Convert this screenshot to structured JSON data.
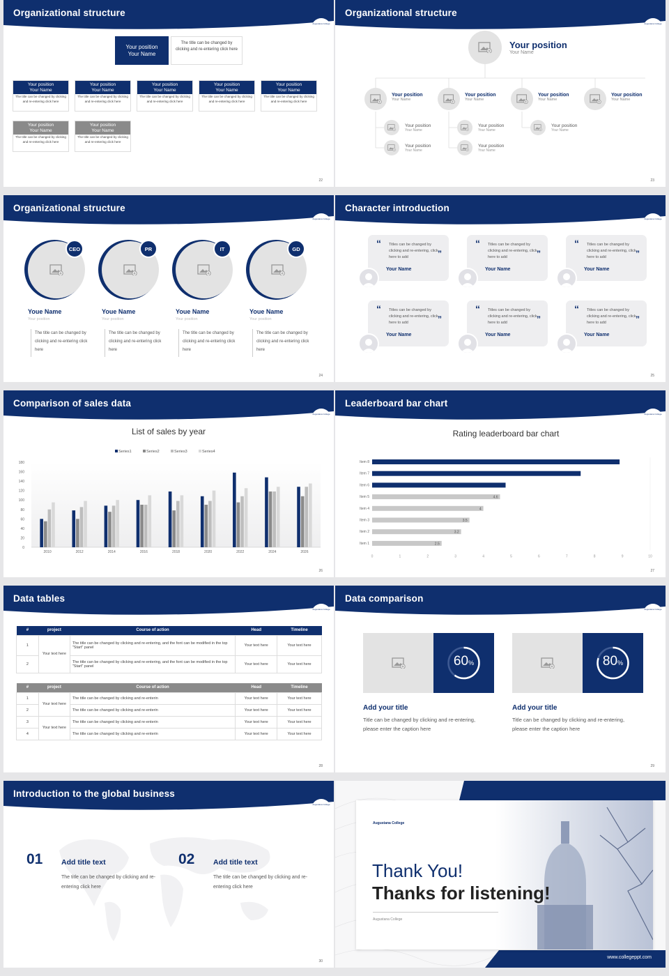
{
  "slides": {
    "s22": {
      "title": "Organizational structure",
      "page": "22",
      "top_box": {
        "position": "Your position",
        "name": "Your Name",
        "desc": "The title can be changed by clicking and re-entering click here"
      },
      "row1": [
        {
          "position": "Your position",
          "name": "Your Name",
          "desc": "The title can be changed by clicking and re-entering click here"
        },
        {
          "position": "Your position",
          "name": "Your Name",
          "desc": "The title can be changed by clicking and re-entering click here"
        },
        {
          "position": "Your position",
          "name": "Your Name",
          "desc": "The title can be changed by clicking and re-entering click here"
        },
        {
          "position": "Your position",
          "name": "Your Name",
          "desc": "The title can be changed by clicking and re-entering click here"
        },
        {
          "position": "Your position",
          "name": "Your Name",
          "desc": "The title can be changed by clicking and re-entering click here"
        }
      ],
      "row2": [
        {
          "position": "Your position",
          "name": "Your Name",
          "desc": "The title can be changed by clicking and re-entering click here"
        },
        {
          "position": "Your position",
          "name": "Your Name",
          "desc": "The title can be changed by clicking and re-entering click here"
        }
      ]
    },
    "s23": {
      "title": "Organizational structure",
      "page": "23",
      "top": {
        "position": "Your position",
        "name": "Your Name"
      },
      "level1": [
        {
          "position": "Your position",
          "name": "Your Name"
        },
        {
          "position": "Your position",
          "name": "Your Name"
        },
        {
          "position": "Your position",
          "name": "Your Name"
        },
        {
          "position": "Your position",
          "name": "Your Name"
        }
      ],
      "level2": [
        {
          "position": "Your position",
          "name": "Your Name"
        },
        {
          "position": "Your position",
          "name": "Your Name"
        },
        {
          "position": "Your position",
          "name": "Your Name"
        },
        {
          "position": "Your position",
          "name": "Your Name"
        },
        {
          "position": "Your position",
          "name": "Your Name"
        }
      ]
    },
    "s24": {
      "title": "Organizational structure",
      "page": "24",
      "people": [
        {
          "badge": "CEO",
          "name": "Youe Name",
          "position": "Your position",
          "desc": "The title can be changed by clicking and re-entering click here"
        },
        {
          "badge": "PR",
          "name": "Youe Name",
          "position": "Your position",
          "desc": "The title can be changed by clicking and re-entering click here"
        },
        {
          "badge": "IT",
          "name": "Youe Name",
          "position": "Your position",
          "desc": "The title can be changed by clicking and re-entering click here"
        },
        {
          "badge": "GD",
          "name": "Youe Name",
          "position": "Your position",
          "desc": "The title can be changed by clicking and re-entering click here"
        }
      ]
    },
    "s25": {
      "title": "Character introduction",
      "page": "25",
      "cards": [
        {
          "quote": "Titles can be changed by clicking and re-entering, click here to add",
          "name": "Your Name"
        },
        {
          "quote": "Titles can be changed by clicking and re-entering, click here to add",
          "name": "Your Name"
        },
        {
          "quote": "Titles can be changed by clicking and re-entering, click here to add",
          "name": "Your Name"
        },
        {
          "quote": "Titles can be changed by clicking and re-entering, click here to add",
          "name": "Your Name"
        },
        {
          "quote": "Titles can be changed by clicking and re-entering, click here to add",
          "name": "Your Name"
        },
        {
          "quote": "Titles can be changed by clicking and re-entering, click here to add",
          "name": "Your Name"
        }
      ]
    },
    "s26": {
      "title": "Comparison of sales data",
      "page": "26"
    },
    "s27": {
      "title": "Leaderboard bar chart",
      "page": "27"
    },
    "s28": {
      "title": "Data tables",
      "page": "28",
      "table1": {
        "headers": [
          "#",
          "project",
          "Course of action",
          "Head",
          "Timeline"
        ],
        "project": "Your text here",
        "rows": [
          {
            "num": "1",
            "action": "The title can be changed by clicking and re-entering, and the font can be modified in the top \"Start\" panel",
            "head": "Your text here",
            "timeline": "Your text here"
          },
          {
            "num": "2",
            "action": "The title can be changed by clicking and re-entering, and the font can be modified in the top \"Start\" panel",
            "head": "Your text here",
            "timeline": "Your text here"
          }
        ]
      },
      "table2": {
        "headers": [
          "#",
          "project",
          "Course of action",
          "Head",
          "Timeline"
        ],
        "project_a": "Your text here",
        "project_b": "Your text here",
        "rows": [
          {
            "num": "1",
            "action": "The title can be changed by clicking and re-enterin",
            "head": "Your text here",
            "timeline": "Your text here"
          },
          {
            "num": "2",
            "action": "The title can be changed by clicking and re-enterin",
            "head": "Your text here",
            "timeline": "Your text here"
          },
          {
            "num": "3",
            "action": "The title can be changed by clicking and re-enterin",
            "head": "Your text here",
            "timeline": "Your text here"
          },
          {
            "num": "4",
            "action": "The title can be changed by clicking and re-enterin",
            "head": "Your text here",
            "timeline": "Your text here"
          }
        ]
      }
    },
    "s29": {
      "title": "Data comparison",
      "page": "29",
      "items": [
        {
          "percent": "60",
          "unit": "%",
          "value": 60,
          "title": "Add your title",
          "desc": "Title can be changed by clicking and re-entering, please enter the caption here"
        },
        {
          "percent": "80",
          "unit": "%",
          "value": 80,
          "title": "Add your title",
          "desc": "Title can be changed by clicking and re-entering, please enter the caption here"
        }
      ]
    },
    "s30": {
      "title": "Introduction to the global business",
      "page": "30",
      "items": [
        {
          "num": "01",
          "title": "Add title text",
          "desc": "The title can be changed by clicking and re-entering click here"
        },
        {
          "num": "02",
          "title": "Add title text",
          "desc": "The title can be changed by clicking and re-entering click here"
        }
      ]
    },
    "s31": {
      "college": "Augustana College",
      "thank1": "Thank You!",
      "thank2": "Thanks for listening!",
      "subtitle": "Augustana College",
      "url": "www.collegeppt.com"
    }
  },
  "chart_data": [
    {
      "type": "bar",
      "title": "List of sales by year",
      "categories": [
        "2010",
        "2012",
        "2014",
        "2016",
        "2018",
        "2020",
        "2022",
        "2024",
        "2026"
      ],
      "series": [
        {
          "name": "Series1",
          "values": [
            60,
            78,
            88,
            100,
            118,
            108,
            158,
            148,
            128
          ]
        },
        {
          "name": "Series2",
          "values": [
            55,
            60,
            75,
            90,
            78,
            90,
            95,
            118,
            108
          ]
        },
        {
          "name": "Series3",
          "values": [
            80,
            85,
            88,
            90,
            98,
            98,
            108,
            118,
            128
          ]
        },
        {
          "name": "Series4",
          "values": [
            95,
            98,
            100,
            110,
            110,
            120,
            125,
            128,
            135
          ]
        }
      ],
      "ylim": [
        0,
        180
      ],
      "yticks": [
        "0",
        "20",
        "40",
        "60",
        "80",
        "100",
        "120",
        "140",
        "160",
        "180"
      ],
      "legend": "top",
      "colors": [
        "#0f2f6e",
        "#8a8a8a",
        "#bdbdbd",
        "#d9d9d9"
      ]
    },
    {
      "type": "bar",
      "orientation": "horizontal",
      "title": "Rating leaderboard bar chart",
      "categories": [
        "Item 8",
        "Item 7",
        "Item 6",
        "Item 5",
        "Item 4",
        "Item 3",
        "Item 2",
        "Item 1"
      ],
      "values": [
        8.9,
        7.5,
        4.8,
        4.6,
        4,
        3.5,
        3.2,
        2.5
      ],
      "labels": [
        "",
        "",
        "",
        "4.6",
        "4",
        "3.5",
        "3.2",
        "2.5"
      ],
      "highlight_colors": [
        "#0f2f6e",
        "#0f2f6e",
        "#0f2f6e",
        "#c8c8c8",
        "#c8c8c8",
        "#c8c8c8",
        "#c8c8c8",
        "#c8c8c8"
      ],
      "xlim": [
        0,
        10
      ],
      "xticks": [
        "0",
        "1",
        "2",
        "3",
        "4",
        "5",
        "6",
        "7",
        "8",
        "9",
        "10"
      ]
    }
  ]
}
